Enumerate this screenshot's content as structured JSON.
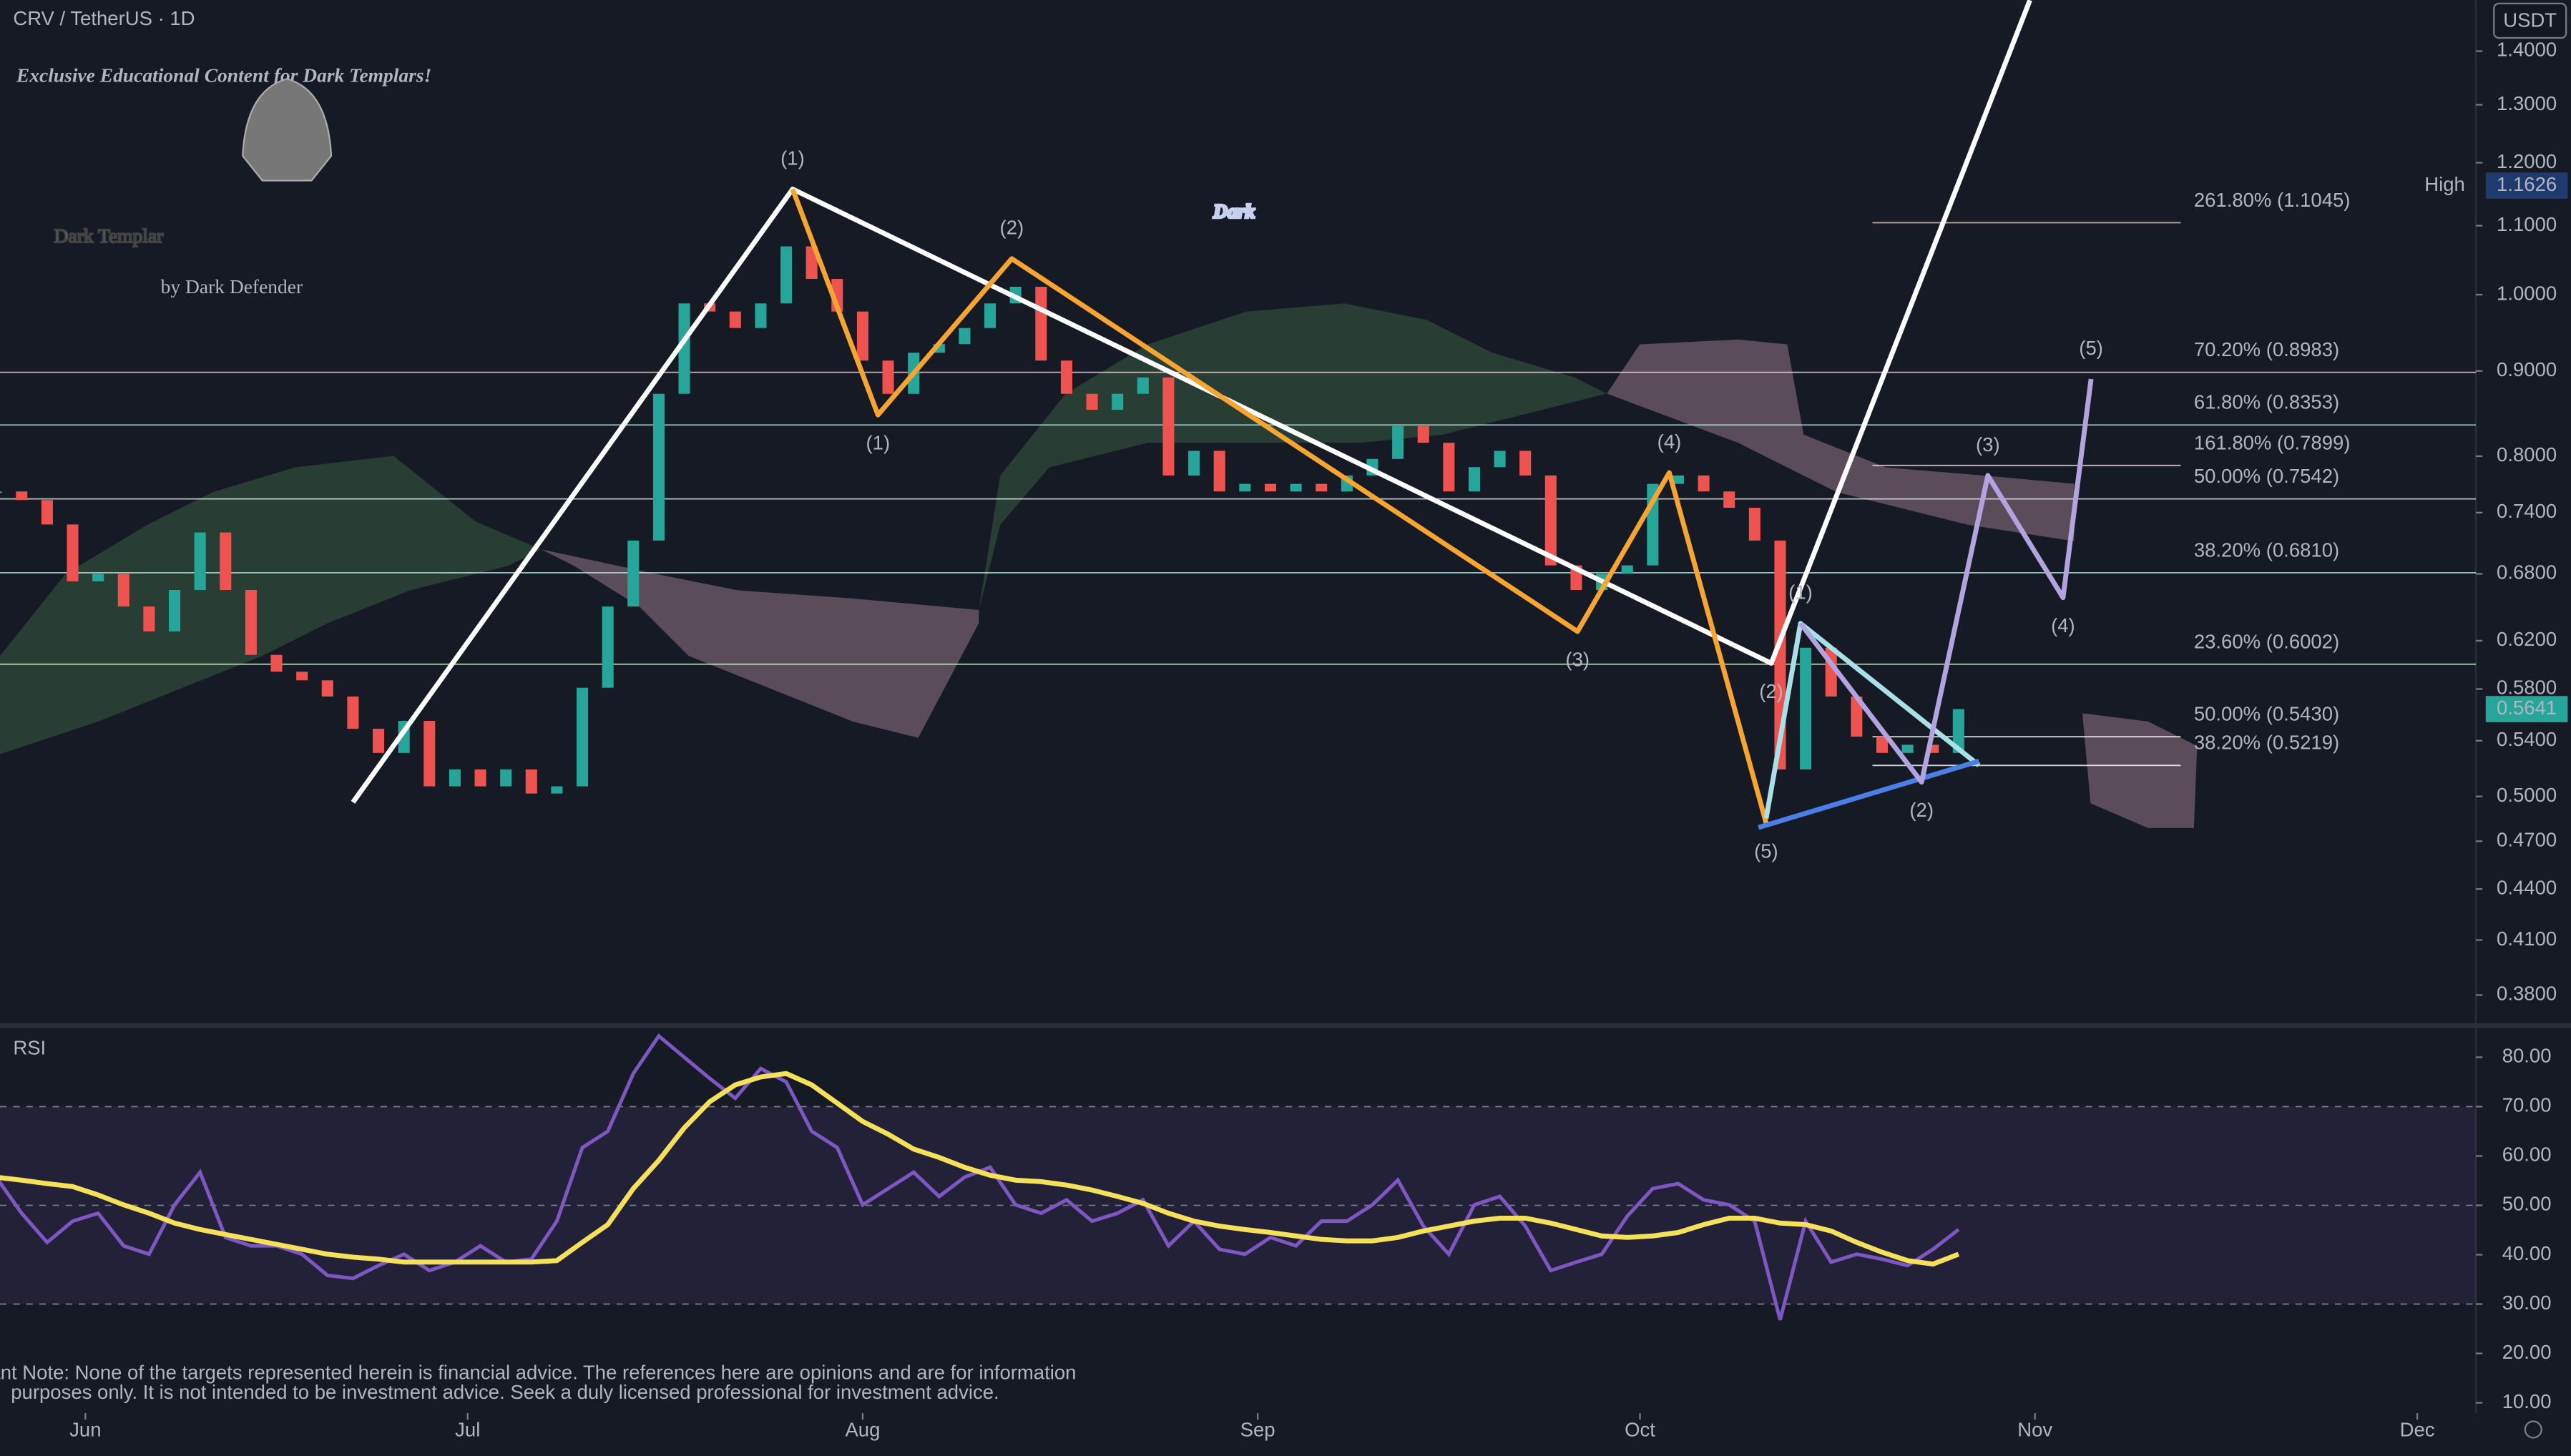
{
  "header": {
    "symbol": "CRV / TetherUS · 1D",
    "currency": "USDT"
  },
  "watermark": {
    "banner": "Exclusive Educational Content for Dark Templars!",
    "brand": "Dark Templar",
    "byline": "by Dark Defender",
    "big": "Dark"
  },
  "note": [
    "Important Note: None of the targets represented herein is financial advice. The references here are opinions and are for information",
    "purposes only. It is not intended to be investment advice. Seek a duly licensed professional for investment advice."
  ],
  "chart_data": [
    {
      "type": "candlestick",
      "up_color": "#26a69a",
      "down_color": "#ef5350",
      "log": true,
      "x": [
        -7,
        -5,
        -3,
        -1,
        1,
        3,
        5,
        7,
        9,
        11,
        13,
        15,
        17,
        19,
        21,
        23,
        25,
        27,
        29,
        31,
        33,
        35,
        37,
        39,
        41,
        43,
        45,
        47,
        49,
        51,
        53,
        55,
        57,
        59,
        61,
        63,
        65,
        67,
        69,
        71,
        73,
        75,
        77,
        79,
        81,
        83,
        85,
        87,
        89,
        91,
        93,
        95,
        97,
        99,
        101,
        103,
        105,
        107,
        109,
        111,
        113,
        115,
        117,
        119,
        121,
        123,
        125,
        127,
        129,
        131,
        133,
        135,
        137,
        139,
        141,
        143,
        145,
        147
      ],
      "values": [
        0.762,
        0.753,
        0.728,
        0.673,
        0.68,
        0.65,
        0.628,
        0.665,
        0.72,
        0.665,
        0.608,
        0.594,
        0.587,
        0.574,
        0.549,
        0.531,
        0.555,
        0.507,
        0.519,
        0.507,
        0.519,
        0.502,
        0.507,
        0.581,
        0.65,
        0.712,
        0.872,
        0.988,
        0.977,
        0.955,
        0.988,
        1.069,
        1.022,
        0.977,
        0.913,
        0.872,
        0.923,
        0.934,
        0.955,
        0.988,
        1.011,
        0.913,
        0.872,
        0.853,
        0.872,
        0.892,
        0.779,
        0.806,
        0.762,
        0.77,
        0.762,
        0.77,
        0.762,
        0.779,
        0.797,
        0.834,
        0.815,
        0.762,
        0.788,
        0.806,
        0.779,
        0.688,
        0.665,
        0.68,
        0.688,
        0.77,
        0.779,
        0.762,
        0.745,
        0.712,
        0.519,
        0.614,
        0.574,
        0.543,
        0.531,
        0.537,
        0.531,
        0.5641
      ],
      "xlim": [
        -6.7,
        187.6
      ],
      "xticks": [
        {
          "value": 0,
          "label": "Jun"
        },
        {
          "value": 30,
          "label": "Jul"
        },
        {
          "value": 61,
          "label": "Aug"
        },
        {
          "value": 92,
          "label": "Sep"
        },
        {
          "value": 122,
          "label": "Oct"
        },
        {
          "value": 153,
          "label": "Nov"
        },
        {
          "value": 183,
          "label": "Dec"
        }
      ],
      "ylim": [
        0.3656,
        1.502
      ],
      "yticks": [
        {
          "value": 1.4,
          "label": "1.4000"
        },
        {
          "value": 1.3,
          "label": "1.3000"
        },
        {
          "value": 1.2,
          "label": "1.2000"
        },
        {
          "value": 1.1,
          "label": "1.1000"
        },
        {
          "value": 1,
          "label": "1.0000"
        },
        {
          "value": 0.9,
          "label": "0.9000"
        },
        {
          "value": 0.8,
          "label": "0.8000"
        },
        {
          "value": 0.74,
          "label": "0.7400"
        },
        {
          "value": 0.68,
          "label": "0.6800"
        },
        {
          "value": 0.62,
          "label": "0.6200"
        },
        {
          "value": 0.58,
          "label": "0.5800"
        },
        {
          "value": 0.54,
          "label": "0.5400"
        },
        {
          "value": 0.5,
          "label": "0.5000"
        },
        {
          "value": 0.47,
          "label": "0.4700"
        },
        {
          "value": 0.44,
          "label": "0.4400"
        },
        {
          "value": 0.41,
          "label": "0.4100"
        },
        {
          "value": 0.38,
          "label": "0.3800"
        }
      ],
      "high": {
        "label": "High",
        "value": 1.1626
      },
      "last": 0.5641,
      "annotations": [
        {
          "label": "261.80% (1.1045)",
          "value": 1.1045,
          "color": "#f2c7b0",
          "extend": false
        },
        {
          "label": "70.20% (0.8983)",
          "value": 0.8983,
          "color": "#f0d8e0",
          "extend": true
        },
        {
          "label": "61.80% (0.8353)",
          "value": 0.8353,
          "color": "#b8e6e0",
          "extend": true
        },
        {
          "label": "161.80% (0.7899)",
          "value": 0.7899,
          "color": "#f4dde6",
          "extend": false
        },
        {
          "label": "50.00% (0.7542)",
          "value": 0.7542,
          "color": "#e0f0ec",
          "extend": true
        },
        {
          "label": "38.20% (0.6810)",
          "value": 0.681,
          "color": "#b8e6e0",
          "extend": true
        },
        {
          "label": "23.60% (0.6002)",
          "value": 0.6002,
          "color": "#c8f0c0",
          "extend": true
        },
        {
          "label": "50.00% (0.5430)",
          "value": 0.543,
          "color": "#ffffff",
          "extend": false
        },
        {
          "label": "38.20% (0.5219)",
          "value": 0.5219,
          "color": "#ffffff",
          "extend": false
        }
      ],
      "waves": [
        {
          "color": "#ffffff",
          "points": [
            [
              21,
              0.496
            ],
            [
              55.5,
              1.157
            ],
            [
              132.3,
              0.601
            ],
            [
              152.6,
              1.502
            ]
          ],
          "labels": [
            null,
            "(1)",
            "(2)",
            null
          ]
        },
        {
          "color": "#f7a530",
          "points": [
            [
              55.5,
              1.157
            ],
            [
              62.2,
              0.847
            ],
            [
              72.7,
              1.051
            ],
            [
              117.1,
              0.628
            ],
            [
              124.3,
              0.782
            ],
            [
              131.9,
              0.482
            ]
          ],
          "labels": [
            null,
            "(1)",
            "(2)",
            "(3)",
            "(4)",
            "(5)"
          ]
        },
        {
          "color": "#a8e0e8",
          "points": [
            [
              131.9,
              0.485
            ],
            [
              134.6,
              0.635
            ],
            [
              148.6,
              0.522
            ]
          ]
        },
        {
          "color": "#4a7fe8",
          "points": [
            [
              131.3,
              0.479
            ],
            [
              148.6,
              0.525
            ]
          ]
        },
        {
          "color": "#b3a3e0",
          "points": [
            [
              134.6,
              0.635
            ],
            [
              144.1,
              0.51
            ],
            [
              149.3,
              0.779
            ],
            [
              155.2,
              0.658
            ],
            [
              157.4,
              0.89
            ]
          ],
          "labels": [
            "(1)",
            "(2)",
            "(3)",
            "(4)",
            "(5)"
          ]
        }
      ]
    },
    {
      "type": "line",
      "title": "RSI",
      "x": [
        -7,
        -5,
        -3,
        -1,
        1,
        3,
        5,
        7,
        9,
        11,
        13,
        15,
        17,
        19,
        21,
        23,
        25,
        27,
        29,
        31,
        33,
        35,
        37,
        39,
        41,
        43,
        45,
        47,
        49,
        51,
        53,
        55,
        57,
        59,
        61,
        63,
        65,
        67,
        69,
        71,
        73,
        75,
        77,
        79,
        81,
        83,
        85,
        87,
        89,
        91,
        93,
        95,
        97,
        99,
        101,
        103,
        105,
        107,
        109,
        111,
        113,
        115,
        117,
        119,
        121,
        123,
        125,
        127,
        129,
        131,
        133,
        135,
        137,
        139,
        141,
        143,
        145,
        147
      ],
      "xlim": [
        -6.7,
        187.6
      ],
      "ylim": [
        7.9,
        85.6
      ],
      "yticks": [
        {
          "value": 80,
          "label": "80.00"
        },
        {
          "value": 70,
          "label": "70.00"
        },
        {
          "value": 60,
          "label": "60.00"
        },
        {
          "value": 50,
          "label": "50.00"
        },
        {
          "value": 40,
          "label": "40.00"
        },
        {
          "value": 30,
          "label": "30.00"
        },
        {
          "value": 20,
          "label": "20.00"
        },
        {
          "value": 10,
          "label": "10.00"
        }
      ],
      "levels": [
        70,
        50,
        30
      ],
      "series": [
        {
          "color": "#7e57c2",
          "values": [
            55.7,
            48.4,
            42.5,
            46.8,
            48.4,
            41.8,
            40.1,
            50.1,
            56.7,
            43.5,
            41.8,
            41.8,
            40.1,
            35.8,
            35.2,
            37.8,
            40.1,
            36.8,
            38.5,
            41.8,
            38.5,
            39.1,
            46.8,
            61.7,
            65,
            76.7,
            84.3,
            80,
            75.7,
            71.7,
            77.7,
            75,
            65,
            61.7,
            50.1,
            53.4,
            56.7,
            51.8,
            55.7,
            57.7,
            50.1,
            48.4,
            51.1,
            46.8,
            48.4,
            51.1,
            41.8,
            46.8,
            41.1,
            40.1,
            43.5,
            41.8,
            46.8,
            46.8,
            50.1,
            55.1,
            45.8,
            40.1,
            50.1,
            51.8,
            45.8,
            36.8,
            38.5,
            40.1,
            47.8,
            53.4,
            54.4,
            51.1,
            50.1,
            46.8,
            26.8,
            46.8,
            38.5,
            40.1,
            39.1,
            37.8,
            41.1,
            45.1
          ]
        },
        {
          "color": "#f5e05a",
          "values": [
            55.7,
            55.1,
            54.4,
            53.8,
            52.1,
            50.1,
            48.4,
            46.4,
            45.1,
            44.1,
            43.1,
            42.1,
            41.1,
            40.1,
            39.5,
            39.1,
            38.5,
            38.5,
            38.5,
            38.5,
            38.5,
            38.5,
            38.8,
            42.5,
            46.1,
            53.4,
            59.1,
            65.7,
            71,
            74.4,
            76,
            76.7,
            74.4,
            70.7,
            67,
            64.4,
            61.4,
            59.7,
            57.7,
            56.1,
            55.1,
            54.8,
            54.1,
            53.1,
            51.8,
            50.4,
            48.4,
            46.8,
            45.8,
            45.1,
            44.5,
            43.8,
            43.1,
            42.8,
            42.8,
            43.5,
            44.8,
            45.8,
            46.8,
            47.4,
            47.4,
            46.4,
            45.1,
            43.8,
            43.5,
            43.8,
            44.5,
            46.1,
            47.4,
            47.4,
            46.4,
            46.1,
            44.8,
            42.5,
            40.5,
            38.8,
            38.1,
            40.1
          ]
        }
      ]
    }
  ]
}
